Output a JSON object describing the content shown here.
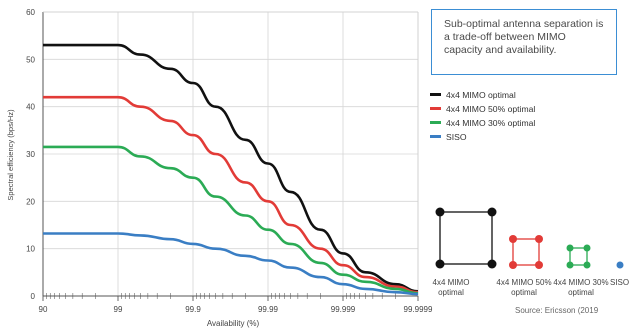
{
  "callout": {
    "text": "Sub-optimal antenna separation is a trade-off between MIMO capacity and availability."
  },
  "legend": [
    {
      "label": "4x4 MIMO optimal",
      "color": "#111111"
    },
    {
      "label": "4x4 MIMO 50% optimal",
      "color": "#e23b37"
    },
    {
      "label": "4x4 MIMO 30% optimal",
      "color": "#2bab55"
    },
    {
      "label": "SISO",
      "color": "#3a7ec4"
    }
  ],
  "antennas": [
    {
      "label": "4x4 MIMO optimal",
      "color": "#111111"
    },
    {
      "label": "4x4 MIMO 50% optimal",
      "color": "#e23b37"
    },
    {
      "label": "4x4 MIMO 30% optimal",
      "color": "#2bab55"
    },
    {
      "label": "SISO",
      "color": "#3a7ec4"
    }
  ],
  "source": "Source: Ericsson (2019",
  "chart_data": {
    "type": "line",
    "xlabel": "Availability (%)",
    "ylabel": "Spectral efficiency (bps/Hz)",
    "x_scale": "log-unavailability",
    "x_ticks": [
      "90",
      "99",
      "99.9",
      "99.99",
      "99.999",
      "99.9999"
    ],
    "y_ticks": [
      "0",
      "10",
      "20",
      "30",
      "40",
      "50",
      "60"
    ],
    "ylim": [
      0,
      60
    ],
    "grid": true,
    "series": [
      {
        "name": "4x4 MIMO optimal",
        "color": "#111111",
        "x": [
          90,
          99,
          99.5,
          99.8,
          99.9,
          99.95,
          99.98,
          99.99,
          99.995,
          99.998,
          99.999,
          99.9995,
          99.9998,
          99.9999
        ],
        "y": [
          53,
          53,
          51,
          48,
          45,
          40,
          33,
          28,
          22,
          14,
          9,
          5,
          2.5,
          1
        ]
      },
      {
        "name": "4x4 MIMO 50% optimal",
        "color": "#e23b37",
        "x": [
          90,
          99,
          99.5,
          99.8,
          99.9,
          99.95,
          99.98,
          99.99,
          99.995,
          99.998,
          99.999,
          99.9995,
          99.9998,
          99.9999
        ],
        "y": [
          42,
          42,
          40,
          37,
          34,
          30,
          24,
          20,
          15,
          10,
          6.5,
          4,
          2,
          0.8
        ]
      },
      {
        "name": "4x4 MIMO 30% optimal",
        "color": "#2bab55",
        "x": [
          90,
          99,
          99.5,
          99.8,
          99.9,
          99.95,
          99.98,
          99.99,
          99.995,
          99.998,
          99.999,
          99.9995,
          99.9998,
          99.9999
        ],
        "y": [
          31.5,
          31.5,
          29.5,
          27,
          25,
          21,
          17,
          14,
          11,
          7,
          4.5,
          3,
          1.5,
          0.6
        ]
      },
      {
        "name": "SISO",
        "color": "#3a7ec4",
        "x": [
          90,
          99,
          99.5,
          99.8,
          99.9,
          99.95,
          99.98,
          99.99,
          99.995,
          99.998,
          99.999,
          99.9995,
          99.9998,
          99.9999
        ],
        "y": [
          13.2,
          13.2,
          12.8,
          12,
          11,
          10,
          8.5,
          7.5,
          6,
          4,
          2.5,
          1.5,
          0.8,
          0.4
        ]
      }
    ]
  }
}
